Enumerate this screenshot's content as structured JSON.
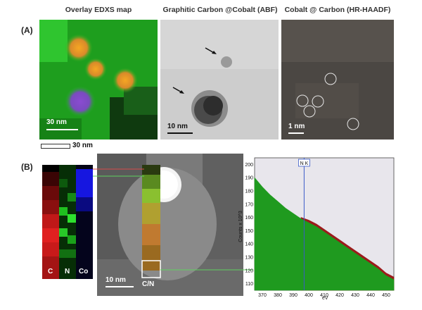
{
  "panel_a": {
    "label": "(A)",
    "titles": [
      "Overlay EDXS map",
      "Graphitic Carbon @Cobalt (ABF)",
      "Cobalt @ Carbon (HR-HAADF)"
    ],
    "scale_edxs": "30 nm",
    "scale_edxs_below": "30 nm",
    "scale_abf": "10 nm",
    "scale_haadf": "1 nm"
  },
  "panel_b": {
    "label": "(B)",
    "map_labels": [
      "C",
      "N",
      "Co"
    ],
    "scale_haadf": "10 nm",
    "linescan_label": "C/N",
    "spectrum": {
      "marker_label": "N K",
      "ylabel": "Counts x 10^3",
      "xlabel": "eV"
    }
  },
  "chart_data": {
    "type": "area",
    "xlabel": "eV",
    "ylabel": "Counts x 10^3",
    "xlim": [
      365,
      455
    ],
    "ylim": [
      105,
      205
    ],
    "xticks": [
      370,
      380,
      390,
      400,
      410,
      420,
      430,
      440,
      450
    ],
    "yticks": [
      110,
      120,
      130,
      140,
      150,
      160,
      170,
      180,
      190,
      200
    ],
    "marker": {
      "label": "N K",
      "x": 397
    },
    "series": [
      {
        "color": "#1f9a1f",
        "x": [
          365,
          370,
          375,
          380,
          385,
          390,
          395,
          400,
          405,
          410,
          415,
          420,
          425,
          430,
          435,
          440,
          445,
          450,
          455
        ],
        "y": [
          190,
          183,
          177,
          172,
          167,
          163,
          159,
          156,
          153,
          149,
          145,
          141,
          137,
          133,
          129,
          125,
          121,
          116,
          113
        ]
      },
      {
        "color": "#9b1b1b",
        "x": [
          395,
          400,
          405,
          410,
          415,
          420,
          425,
          430,
          435,
          440,
          445,
          450,
          455
        ],
        "y": [
          160,
          158,
          155,
          151,
          147,
          143,
          139,
          135,
          131,
          127,
          123,
          118,
          115
        ]
      }
    ]
  }
}
